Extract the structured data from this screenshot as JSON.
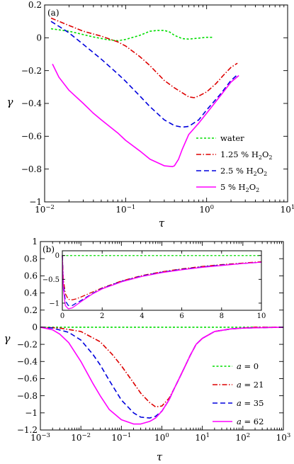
{
  "chart_data": [
    {
      "type": "line",
      "panel_label": "(a)",
      "xlabel": "τ",
      "ylabel": "γ",
      "xscale": "log",
      "xlim": [
        0.01,
        10
      ],
      "ylim": [
        -1,
        0.2
      ],
      "x_ticks": [
        0.01,
        0.1,
        1,
        10
      ],
      "x_tick_labels": [
        {
          "base": "10",
          "exp": "−2"
        },
        {
          "base": "10",
          "exp": "−1"
        },
        {
          "base": "10",
          "exp": "0"
        },
        {
          "base": "10",
          "exp": "1"
        }
      ],
      "y_ticks": [
        -1,
        -0.8,
        -0.6,
        -0.4,
        -0.2,
        0,
        0.2
      ],
      "y_tick_labels": [
        "−1",
        "−0.8",
        "−0.6",
        "−0.4",
        "−0.2",
        "0",
        "0.2"
      ],
      "legend_position": "bottom-right",
      "grid": false,
      "series": [
        {
          "name": "water",
          "color": "#00dd00",
          "dash": "3,2.5",
          "x": [
            0.012,
            0.02,
            0.04,
            0.06,
            0.08,
            0.1,
            0.15,
            0.2,
            0.25,
            0.3,
            0.35,
            0.4,
            0.5,
            0.6,
            0.8,
            1.0,
            1.2
          ],
          "y": [
            0.055,
            0.04,
            0.005,
            -0.012,
            -0.018,
            -0.01,
            0.015,
            0.04,
            0.045,
            0.045,
            0.035,
            0.015,
            -0.005,
            -0.008,
            -0.002,
            0.003,
            0.003
          ]
        },
        {
          "name": "1.25 % H2O2",
          "name_main": "1.25 % H",
          "sub1": "2",
          "mid": "O",
          "sub2": "2",
          "color": "#dd0000",
          "dash": "7,2.5,1.5,2.5",
          "x": [
            0.012,
            0.02,
            0.03,
            0.05,
            0.08,
            0.1,
            0.15,
            0.2,
            0.3,
            0.4,
            0.5,
            0.6,
            0.7,
            0.8,
            1.0,
            1.3,
            1.6,
            2.0,
            2.4
          ],
          "y": [
            0.12,
            0.075,
            0.04,
            0.01,
            -0.025,
            -0.05,
            -0.115,
            -0.17,
            -0.26,
            -0.305,
            -0.335,
            -0.36,
            -0.365,
            -0.355,
            -0.33,
            -0.28,
            -0.23,
            -0.18,
            -0.155
          ]
        },
        {
          "name": "2.5 % H2O2",
          "name_main": "2.5 % H",
          "sub1": "2",
          "mid": "O",
          "sub2": "2",
          "color": "#0000dd",
          "dash": "7,4",
          "x": [
            0.012,
            0.015,
            0.02,
            0.03,
            0.05,
            0.08,
            0.1,
            0.15,
            0.2,
            0.3,
            0.4,
            0.5,
            0.6,
            0.8,
            1.0,
            1.5,
            2.0,
            2.4
          ],
          "y": [
            0.1,
            0.07,
            0.03,
            -0.04,
            -0.13,
            -0.22,
            -0.265,
            -0.355,
            -0.42,
            -0.5,
            -0.535,
            -0.545,
            -0.54,
            -0.5,
            -0.44,
            -0.34,
            -0.26,
            -0.225
          ]
        },
        {
          "name": "5 % H2O2",
          "name_main": "5 % H",
          "sub1": "2",
          "mid": "O",
          "sub2": "2",
          "color": "#ff00ff",
          "dash": "",
          "x": [
            0.0125,
            0.015,
            0.02,
            0.03,
            0.04,
            0.05,
            0.08,
            0.1,
            0.15,
            0.2,
            0.3,
            0.38,
            0.4,
            0.45,
            0.5,
            0.6,
            0.8,
            1.0,
            1.5,
            2.0,
            2.5
          ],
          "y": [
            -0.16,
            -0.24,
            -0.32,
            -0.4,
            -0.46,
            -0.5,
            -0.58,
            -0.625,
            -0.69,
            -0.74,
            -0.78,
            -0.785,
            -0.78,
            -0.74,
            -0.68,
            -0.59,
            -0.52,
            -0.46,
            -0.35,
            -0.27,
            -0.23
          ]
        }
      ]
    },
    {
      "type": "line",
      "panel_label": "(b)",
      "xlabel": "τ",
      "ylabel": "γ",
      "xscale": "log",
      "xlim": [
        0.001,
        1000
      ],
      "ylim": [
        -1.2,
        1
      ],
      "x_ticks": [
        0.001,
        0.01,
        0.1,
        1,
        10,
        100,
        1000
      ],
      "x_tick_labels": [
        {
          "base": "10",
          "exp": "−3"
        },
        {
          "base": "10",
          "exp": "−2"
        },
        {
          "base": "10",
          "exp": "−1"
        },
        {
          "base": "10",
          "exp": "0"
        },
        {
          "base": "10",
          "exp": "1"
        },
        {
          "base": "10",
          "exp": "2"
        },
        {
          "base": "10",
          "exp": "3"
        }
      ],
      "y_ticks": [
        -1.2,
        -1,
        -0.8,
        -0.6,
        -0.4,
        -0.2,
        0,
        0.2,
        0.4,
        0.6,
        0.8,
        1
      ],
      "y_tick_labels": [
        "−1.2",
        "−1",
        "−0.8",
        "−0.6",
        "−0.4",
        "−0.2",
        "0",
        "0.2",
        "0.4",
        "0.6",
        "0.8",
        "1"
      ],
      "legend_position": "bottom-right",
      "grid": false,
      "series": [
        {
          "name": "a = 0",
          "var": "a",
          "eq": " = 0",
          "color": "#00dd00",
          "dash": "3,2.5",
          "x": [
            0.001,
            1000
          ],
          "y": [
            0,
            0
          ]
        },
        {
          "name": "a = 21",
          "var": "a",
          "eq": " = 21",
          "color": "#dd0000",
          "dash": "7,2.5,1.5,2.5",
          "x": [
            0.001,
            0.003,
            0.01,
            0.03,
            0.06,
            0.1,
            0.2,
            0.3,
            0.5,
            0.7,
            1.0,
            1.5,
            2,
            3,
            5,
            7,
            10,
            20,
            50,
            100,
            200,
            1000
          ],
          "y": [
            0,
            -0.01,
            -0.05,
            -0.17,
            -0.32,
            -0.45,
            -0.65,
            -0.77,
            -0.88,
            -0.93,
            -0.92,
            -0.83,
            -0.72,
            -0.55,
            -0.33,
            -0.2,
            -0.13,
            -0.05,
            -0.02,
            -0.01,
            0,
            0
          ]
        },
        {
          "name": "a = 35",
          "var": "a",
          "eq": " = 35",
          "color": "#0000dd",
          "dash": "7,4",
          "x": [
            0.001,
            0.002,
            0.005,
            0.01,
            0.02,
            0.03,
            0.05,
            0.1,
            0.2,
            0.3,
            0.5,
            0.7,
            1.0,
            1.5,
            2,
            3,
            5,
            7,
            10,
            20,
            50,
            100,
            1000
          ],
          "y": [
            0,
            -0.01,
            -0.06,
            -0.15,
            -0.32,
            -0.44,
            -0.62,
            -0.85,
            -1.0,
            -1.05,
            -1.06,
            -1.04,
            -0.98,
            -0.85,
            -0.72,
            -0.55,
            -0.33,
            -0.2,
            -0.13,
            -0.05,
            -0.02,
            -0.01,
            0
          ]
        },
        {
          "name": "a = 62",
          "var": "a",
          "eq": " = 62",
          "color": "#ff00ff",
          "dash": "",
          "x": [
            0.001,
            0.002,
            0.003,
            0.005,
            0.01,
            0.02,
            0.03,
            0.05,
            0.1,
            0.2,
            0.3,
            0.5,
            0.7,
            1.0,
            1.5,
            2,
            3,
            5,
            7,
            10,
            20,
            50,
            100,
            1000
          ],
          "y": [
            0,
            -0.03,
            -0.08,
            -0.18,
            -0.4,
            -0.66,
            -0.8,
            -0.96,
            -1.08,
            -1.13,
            -1.13,
            -1.1,
            -1.06,
            -0.98,
            -0.85,
            -0.72,
            -0.55,
            -0.33,
            -0.2,
            -0.13,
            -0.05,
            -0.02,
            -0.01,
            0
          ]
        }
      ],
      "inset": {
        "xscale": "linear",
        "xlim": [
          0,
          10
        ],
        "ylim": [
          -1.15,
          0.1
        ],
        "x_ticks": [
          0,
          2,
          4,
          6,
          8,
          10
        ],
        "x_tick_labels": [
          "0",
          "2",
          "4",
          "6",
          "8",
          "10"
        ],
        "y_ticks": [
          -1,
          -0.5,
          0
        ],
        "y_tick_labels": [
          "−1",
          "−0.5",
          "0"
        ],
        "series": [
          {
            "color": "#00dd00",
            "dash": "3,2.5",
            "x": [
              0,
              10
            ],
            "y": [
              0,
              0
            ]
          },
          {
            "color": "#dd0000",
            "dash": "7,2.5,1.5,2.5",
            "x": [
              0,
              0.05,
              0.15,
              0.3,
              0.5,
              0.7,
              1.0,
              1.5,
              2,
              3,
              4,
              5,
              6,
              7,
              8,
              9,
              10
            ],
            "y": [
              0,
              -0.5,
              -0.8,
              -0.92,
              -0.93,
              -0.91,
              -0.86,
              -0.77,
              -0.68,
              -0.53,
              -0.42,
              -0.34,
              -0.28,
              -0.23,
              -0.19,
              -0.16,
              -0.13
            ]
          },
          {
            "color": "#0000dd",
            "dash": "7,4",
            "x": [
              0,
              0.05,
              0.15,
              0.3,
              0.5,
              0.7,
              1.0,
              1.5,
              2,
              3,
              4,
              5,
              6,
              7,
              8,
              9,
              10
            ],
            "y": [
              0,
              -0.6,
              -0.95,
              -1.05,
              -1.05,
              -1.0,
              -0.93,
              -0.8,
              -0.69,
              -0.54,
              -0.43,
              -0.35,
              -0.29,
              -0.24,
              -0.2,
              -0.17,
              -0.14
            ]
          },
          {
            "color": "#ff00ff",
            "dash": "",
            "x": [
              0,
              0.05,
              0.15,
              0.3,
              0.5,
              0.7,
              1.0,
              1.5,
              2,
              3,
              4,
              5,
              6,
              7,
              8,
              9,
              10
            ],
            "y": [
              0,
              -0.7,
              -1.05,
              -1.12,
              -1.1,
              -1.04,
              -0.95,
              -0.81,
              -0.7,
              -0.55,
              -0.44,
              -0.36,
              -0.3,
              -0.25,
              -0.21,
              -0.17,
              -0.14
            ]
          }
        ]
      }
    }
  ]
}
